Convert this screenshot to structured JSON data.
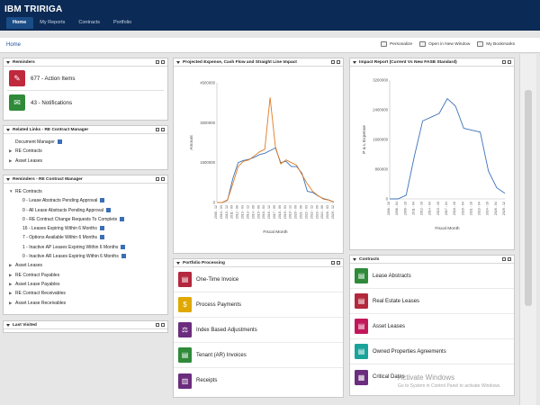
{
  "header": {
    "brand": "IBM TRIRIGA",
    "tabs": [
      "Home",
      "My Reports",
      "Contracts",
      "Portfolio"
    ]
  },
  "breadcrumb": "Home",
  "toolbar": {
    "personalize": "Personalize",
    "new_window": "Open in New Window",
    "bookmarks": "My Bookmarks"
  },
  "action_items": {
    "title": "Reminders",
    "rows": [
      {
        "label": "677 - Action Items",
        "icon": "stamp-icon",
        "color": "#c0283c"
      },
      {
        "label": "43 - Notifications",
        "icon": "envelope-icon",
        "color": "#2f8a3a"
      }
    ]
  },
  "related_links": {
    "title": "Related Links - RE Contract Manager",
    "items": [
      {
        "label": "Document Manager",
        "arrow": false,
        "doc": true
      },
      {
        "label": "RE Contracts",
        "arrow": true,
        "doc": false
      },
      {
        "label": "Asset Leases",
        "arrow": true,
        "doc": false
      }
    ]
  },
  "reminders": {
    "title": "Reminders - RE Contract Manager",
    "top": "RE Contracts",
    "items": [
      "0 - Lease Abstracts Pending Approval",
      "0 - All Lease Abstracts Pending Approval",
      "0 - RE Contract Change Requests To Complete",
      "16 - Leases Expiring Within 6 Months",
      "7 - Options Available Within 6 Months",
      "1 - Inactive AP Leases Expiring Within 6 Months",
      "0 - Inactive AR Leases Expiring Within 6 Months"
    ],
    "rest": [
      "Asset Leases",
      "RE Contract Payables",
      "Asset Lease Payables",
      "RE Contract Receivables",
      "Asset Lease Receivables"
    ]
  },
  "last_visited": {
    "title": "Last Visited"
  },
  "portfolio": {
    "title": "Portfolio Processing",
    "items": [
      {
        "label": "One-Time Invoice",
        "color": "#b3283d",
        "icon": "invoice-icon"
      },
      {
        "label": "Process Payments",
        "color": "#e0a800",
        "icon": "coins-icon"
      },
      {
        "label": "Index Based Adjustments",
        "color": "#6b2d7e",
        "icon": "scale-icon"
      },
      {
        "label": "Tenant (AR) Invoices",
        "color": "#2f8a3a",
        "icon": "invoice-icon"
      },
      {
        "label": "Receipts",
        "color": "#6b2d7e",
        "icon": "receipt-icon"
      }
    ]
  },
  "contracts": {
    "title": "Contracts",
    "items": [
      {
        "label": "Lease Abstracts",
        "color": "#2f8a3a",
        "icon": "document-icon"
      },
      {
        "label": "Real Estate Leases",
        "color": "#b3283d",
        "icon": "document-icon"
      },
      {
        "label": "Asset Leases",
        "color": "#c2185b",
        "icon": "document-icon"
      },
      {
        "label": "Owned Properties Agreements",
        "color": "#1aa39a",
        "icon": "document-icon"
      },
      {
        "label": "Critical Dates",
        "color": "#6b2d7e",
        "icon": "calendar-icon"
      }
    ]
  },
  "watermark": {
    "line1": "Activate Windows",
    "line2": "Go to System in Control Panel to activate Windows."
  },
  "chart_data": [
    {
      "type": "line",
      "title": "Projected Expense, Cash Flow and Straight Line Impact",
      "xlabel": "Fiscal Month",
      "ylabel": "Amount",
      "ylim": [
        0,
        4500000
      ],
      "yticks": [
        "4500000",
        "3000000",
        "1500000",
        "0"
      ],
      "xticks": [
        "2008 - 12",
        "2010 - 03",
        "2010 - 12",
        "2011 - 09",
        "2012 - 06",
        "2013 - 03",
        "2013 - 12",
        "2014 - 09",
        "2015 - 06",
        "2016 - 03",
        "2016 - 12",
        "2017 - 09",
        "2018 - 06",
        "2019 - 03",
        "2019 - 12",
        "2020 - 09",
        "2021 - 06",
        "2022 - 03",
        "2022 - 12",
        "2023 - 09",
        "2024 - 06",
        "2026 - 03",
        "2029 - 12"
      ],
      "series": [
        {
          "color": "#3b73b8",
          "values": [
            0,
            0,
            80000,
            900000,
            1500000,
            1580000,
            1620000,
            1700000,
            1800000,
            1850000,
            1950000,
            2050000,
            1500000,
            1550000,
            1350000,
            1350000,
            1100000,
            420000,
            380000,
            250000,
            150000,
            100000,
            20000
          ]
        },
        {
          "color": "#e07b22",
          "values": [
            0,
            0,
            100000,
            700000,
            1350000,
            1550000,
            1600000,
            1750000,
            1900000,
            2000000,
            3950000,
            2100000,
            1450000,
            1600000,
            1500000,
            1400000,
            1050000,
            700000,
            420000,
            260000,
            130000,
            90000,
            20000
          ]
        }
      ]
    },
    {
      "type": "line",
      "title": "Impact Report (Current Vs New FASB Standard)",
      "xlabel": "Fiscal Month",
      "ylabel": "P & L Expense",
      "ylim": [
        0,
        3200000
      ],
      "yticks": [
        "3200000",
        "2400000",
        "1600000",
        "800000",
        "0"
      ],
      "xticks": [
        "2006 - 10",
        "2008 - 04",
        "2009 - 10",
        "2011 - 04",
        "2012 - 10",
        "2014 - 04",
        "2015 - 10",
        "2017 - 04",
        "2018 - 10",
        "2020 - 04",
        "2021 - 10",
        "2023 - 04",
        "2024 - 10",
        "2026 - 04",
        "2029 - 12"
      ],
      "series": [
        {
          "color": "#3b73b8",
          "values": [
            0,
            0,
            100000,
            1150000,
            2100000,
            2200000,
            2300000,
            2700000,
            2500000,
            1900000,
            1850000,
            1800000,
            750000,
            300000,
            150000
          ]
        }
      ]
    }
  ]
}
